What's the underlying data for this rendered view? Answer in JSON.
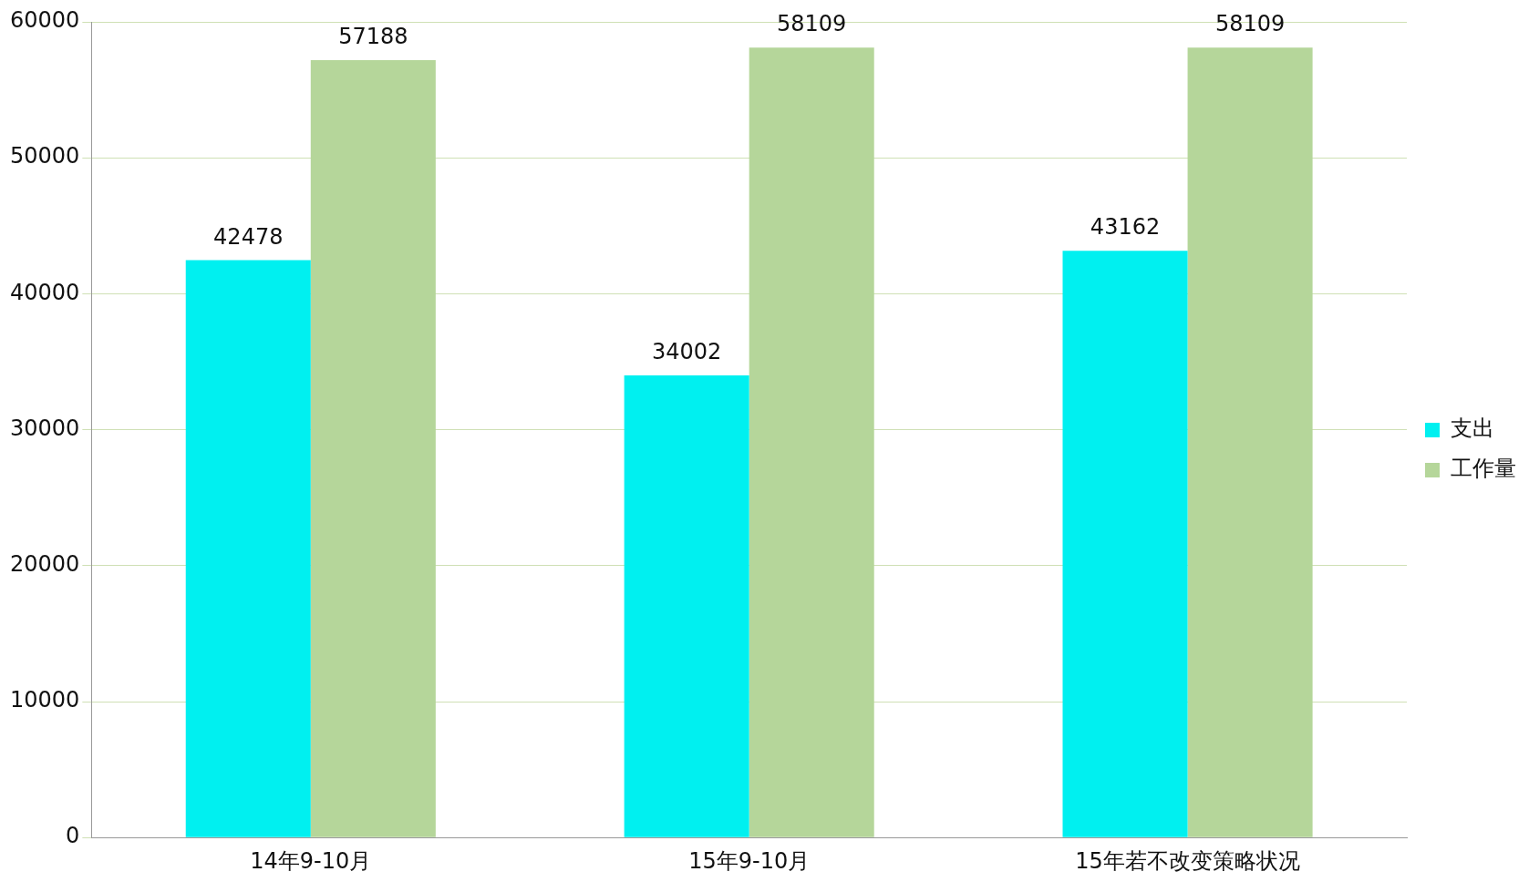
{
  "chart_data": {
    "type": "bar",
    "categories": [
      "14年9-10月",
      "15年9-10月",
      "15年若不改变策略状况"
    ],
    "series": [
      {
        "name": "支出",
        "color": "#00f0f0",
        "values": [
          42478,
          34002,
          43162
        ]
      },
      {
        "name": "工作量",
        "color": "#b5d69a",
        "values": [
          57188,
          58109,
          58109
        ]
      }
    ],
    "ylim": [
      0,
      60000
    ],
    "yticks": [
      0,
      10000,
      20000,
      30000,
      40000,
      50000,
      60000
    ],
    "grid": "y",
    "legend": "right",
    "data_labels": true
  }
}
